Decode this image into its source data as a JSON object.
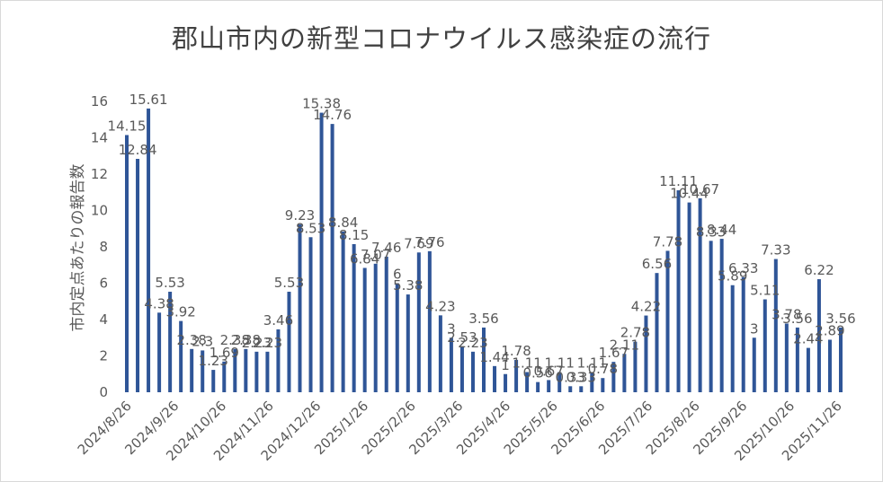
{
  "chart_data": {
    "type": "bar",
    "title": "郡山市内の新型コロナウイルス感染症の流行",
    "ylabel": "市内定点あたりの報告数",
    "xlabel": "",
    "ylim": [
      0,
      16
    ],
    "y_ticks": [
      0,
      2,
      4,
      6,
      8,
      10,
      12,
      14,
      16
    ],
    "grid": false,
    "legend": "none",
    "bar_color": "#2f5597",
    "x_tick_labels": [
      "2024/8/26",
      "2024/9/26",
      "2024/10/26",
      "2024/11/26",
      "2024/12/26",
      "2025/1/26",
      "2025/2/26",
      "2025/3/26",
      "2025/4/26",
      "2025/5/26",
      "2025/6/26",
      "2025/7/26",
      "2025/8/26",
      "2025/9/26",
      "2025/10/26",
      "2025/11/26"
    ],
    "values": [
      14.15,
      12.84,
      15.61,
      4.38,
      5.53,
      3.92,
      2.38,
      2.3,
      1.23,
      1.69,
      2.38,
      2.38,
      2.23,
      2.23,
      3.46,
      5.53,
      9.23,
      8.53,
      15.38,
      14.76,
      8.84,
      8.15,
      6.84,
      7.07,
      7.46,
      6,
      5.38,
      7.69,
      7.76,
      4.23,
      3,
      2.53,
      2.23,
      3.56,
      1.44,
      1,
      1.78,
      1.11,
      0.56,
      0.67,
      1.11,
      0.33,
      0.33,
      1.11,
      0.78,
      1.67,
      2.11,
      2.78,
      4.22,
      6.56,
      7.78,
      11.11,
      10.44,
      10.67,
      8.33,
      8.44,
      5.89,
      6.33,
      3,
      5.11,
      7.33,
      3.78,
      3.56,
      2.44,
      6.22,
      2.89,
      3.56
    ],
    "data_labels": [
      "14.15",
      "12.84",
      "15.61",
      "4.38",
      "5.53",
      "3.92",
      "2.38",
      "2.3",
      "1.23",
      "1.69",
      "2.38",
      "2.38",
      "2.23",
      "2.23",
      "3.46",
      "5.53",
      "9.23",
      "8.53",
      "15.38",
      "14.76",
      "8.84",
      "8.15",
      "6.84",
      "7.07",
      "7.46",
      "6",
      "5.38",
      "7.69",
      "7.76",
      "4.23",
      "3",
      "2.53",
      "2.23",
      "3.56",
      "1.44",
      "1",
      "1.78",
      "1.11",
      "0.56",
      "0.67",
      "1.11",
      "0.33",
      "0.33",
      "1.11",
      "0.78",
      "1.67",
      "2.11",
      "2.78",
      "4.22",
      "6.56",
      "7.78",
      "11.11",
      "10.44",
      "10.67",
      "8.33",
      "8.44",
      "5.89",
      "6.33",
      "3",
      "5.11",
      "7.33",
      "3.78",
      "3.56",
      "2.44",
      "6.22",
      "2.89",
      "3.56"
    ]
  }
}
